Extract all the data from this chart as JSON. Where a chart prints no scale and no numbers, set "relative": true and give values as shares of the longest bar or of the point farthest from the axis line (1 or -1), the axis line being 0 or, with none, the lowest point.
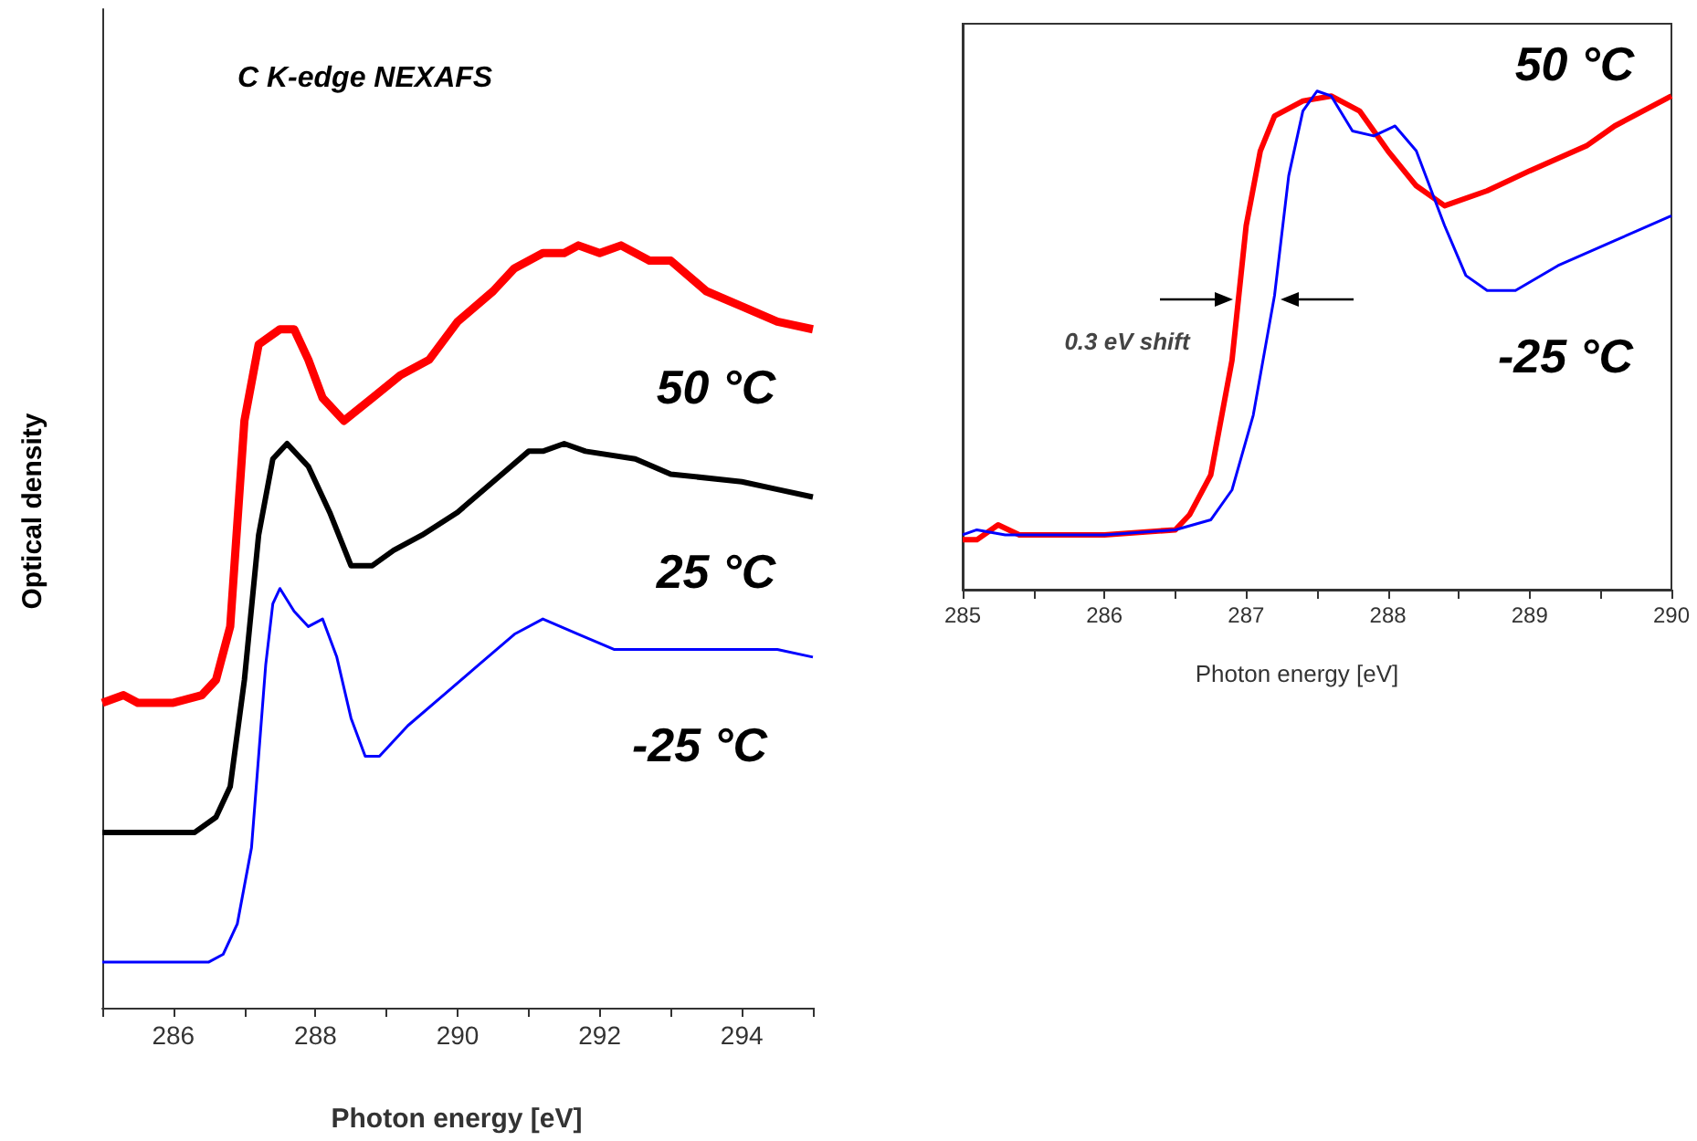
{
  "chart_data": [
    {
      "type": "line",
      "title": "C K-edge NEXAFS",
      "xlabel": "Photon energy [eV]",
      "ylabel": "Optical density",
      "relative": true,
      "marker": "none",
      "tick_labels": "x",
      "xlim": [
        285,
        295
      ],
      "xticks": [
        {
          "value": 285,
          "label": null
        },
        286,
        {
          "value": 287,
          "label": null
        },
        288,
        {
          "value": 289,
          "label": null
        },
        290,
        {
          "value": 291,
          "label": null
        },
        292,
        {
          "value": 293,
          "label": null
        },
        294,
        {
          "value": 295,
          "label": null
        }
      ],
      "series": [
        {
          "name": "50 °C",
          "color": "#ff0000",
          "x": [
            285,
            285.3,
            285.5,
            286,
            286.4,
            286.6,
            286.8,
            287,
            287.2,
            287.5,
            287.7,
            287.9,
            288.1,
            288.4,
            288.8,
            289.2,
            289.6,
            290,
            290.5,
            290.8,
            291.2,
            291.5,
            291.7,
            292,
            292.3,
            292.7,
            293,
            293.5,
            294,
            294.5,
            295
          ],
          "values": [
            0.4,
            0.41,
            0.4,
            0.4,
            0.41,
            0.43,
            0.5,
            0.77,
            0.87,
            0.89,
            0.89,
            0.85,
            0.8,
            0.77,
            0.8,
            0.83,
            0.85,
            0.9,
            0.94,
            0.97,
            0.99,
            0.99,
            1,
            0.99,
            1,
            0.98,
            0.98,
            0.94,
            0.92,
            0.9,
            0.89
          ]
        },
        {
          "name": "25 °C",
          "color": "#000000",
          "x": [
            285,
            285.5,
            286.3,
            286.6,
            286.8,
            287,
            287.2,
            287.4,
            287.6,
            287.9,
            288.2,
            288.5,
            288.8,
            289.1,
            289.5,
            290,
            290.5,
            291,
            291.2,
            291.5,
            291.8,
            292.5,
            293,
            294,
            294.5,
            295
          ],
          "values": [
            0.23,
            0.23,
            0.23,
            0.25,
            0.29,
            0.43,
            0.62,
            0.72,
            0.74,
            0.71,
            0.65,
            0.58,
            0.58,
            0.6,
            0.62,
            0.65,
            0.69,
            0.73,
            0.73,
            0.74,
            0.73,
            0.72,
            0.7,
            0.69,
            0.68,
            0.67
          ]
        },
        {
          "name": "-25 °C",
          "color": "#0000ff",
          "x": [
            285,
            285.5,
            286.5,
            286.7,
            286.9,
            287.1,
            287.3,
            287.4,
            287.5,
            287.7,
            287.9,
            288.1,
            288.3,
            288.5,
            288.7,
            288.9,
            289.3,
            289.8,
            290.3,
            290.8,
            291.2,
            291.7,
            292.2,
            292.5,
            293.5,
            294.5,
            295
          ],
          "values": [
            0.06,
            0.06,
            0.06,
            0.07,
            0.11,
            0.21,
            0.45,
            0.53,
            0.55,
            0.52,
            0.5,
            0.51,
            0.46,
            0.38,
            0.33,
            0.33,
            0.37,
            0.41,
            0.45,
            0.49,
            0.51,
            0.49,
            0.47,
            0.47,
            0.47,
            0.47,
            0.46
          ]
        }
      ]
    },
    {
      "type": "line",
      "xlabel": "Photon energy [eV]",
      "relative": true,
      "marker": "none",
      "tick_labels": "x",
      "annotations": [
        "0.3 eV shift"
      ],
      "xlim": [
        285,
        290
      ],
      "xticks": [
        285,
        {
          "value": 285.5,
          "label": null
        },
        286,
        {
          "value": 286.5,
          "label": null
        },
        287,
        {
          "value": 287.5,
          "label": null
        },
        288,
        {
          "value": 288.5,
          "label": null
        },
        289,
        {
          "value": 289.5,
          "label": null
        },
        290
      ],
      "series": [
        {
          "name": "50 °C",
          "color": "#ff0000",
          "x": [
            285,
            285.1,
            285.25,
            285.4,
            286,
            286.5,
            286.6,
            286.75,
            286.9,
            287,
            287.1,
            287.2,
            287.4,
            287.6,
            287.8,
            288,
            288.2,
            288.4,
            288.7,
            289,
            289.4,
            289.6,
            290
          ],
          "values": [
            0.1,
            0.1,
            0.13,
            0.11,
            0.11,
            0.12,
            0.15,
            0.23,
            0.46,
            0.73,
            0.88,
            0.95,
            0.98,
            0.99,
            0.96,
            0.88,
            0.81,
            0.77,
            0.8,
            0.84,
            0.89,
            0.93,
            0.99
          ]
        },
        {
          "name": "-25 °C",
          "color": "#0000ff",
          "x": [
            285,
            285.1,
            285.3,
            286,
            286.5,
            286.75,
            286.9,
            287.05,
            287.2,
            287.3,
            287.4,
            287.5,
            287.6,
            287.75,
            287.9,
            288.05,
            288.2,
            288.4,
            288.55,
            288.7,
            288.9,
            289.2,
            289.6,
            290
          ],
          "values": [
            0.11,
            0.12,
            0.11,
            0.11,
            0.12,
            0.14,
            0.2,
            0.35,
            0.59,
            0.83,
            0.96,
            1,
            0.99,
            0.92,
            0.91,
            0.93,
            0.88,
            0.73,
            0.63,
            0.6,
            0.6,
            0.65,
            0.7,
            0.75
          ]
        }
      ]
    }
  ]
}
